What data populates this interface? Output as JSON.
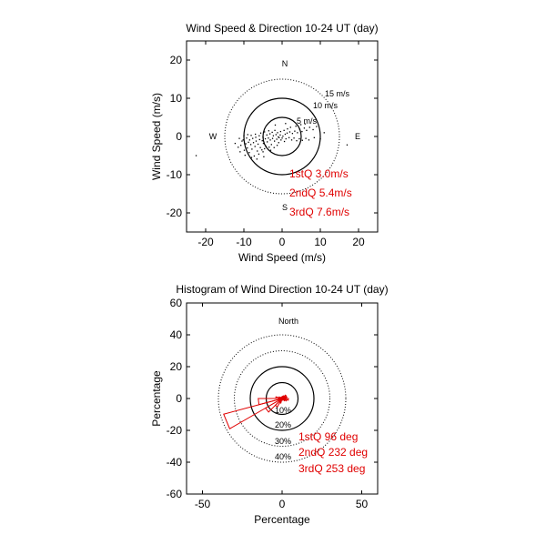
{
  "chart_data": [
    {
      "type": "scatter",
      "title": "Wind Speed & Direction 10-24 UT (day)",
      "xlabel": "Wind Speed (m/s)",
      "ylabel": "Wind Speed (m/s)",
      "xlim": [
        -25,
        25
      ],
      "ylim": [
        -25,
        25
      ],
      "xticks": [
        -20,
        -10,
        0,
        10,
        20
      ],
      "yticks": [
        -20,
        -10,
        0,
        10,
        20
      ],
      "xtick_labels": [
        "-20",
        "-10",
        "0",
        "10",
        "20"
      ],
      "ytick_labels": [
        "-20",
        "-10",
        "0",
        "10",
        "20"
      ],
      "grid": false,
      "compass": {
        "north": "N",
        "south": "S",
        "east": "E",
        "west": "W"
      },
      "rings": [
        {
          "radius": 5,
          "label": "5 m/s",
          "style": "solid"
        },
        {
          "radius": 10,
          "label": "10 m/s",
          "style": "solid"
        },
        {
          "radius": 15,
          "label": "15 m/s",
          "style": "dotted"
        }
      ],
      "annotations": [
        "1stQ 3.0m/s",
        "2ndQ 5.4m/s",
        "3rdQ 7.6m/s"
      ],
      "points": [
        [
          -8.2,
          -2.1
        ],
        [
          -7.5,
          -1.6
        ],
        [
          -9.1,
          -3.0
        ],
        [
          -6.8,
          -1.2
        ],
        [
          -5.9,
          -0.8
        ],
        [
          -10.2,
          -0.9
        ],
        [
          -8.8,
          -1.5
        ],
        [
          -7.1,
          -2.6
        ],
        [
          -6.3,
          -2.0
        ],
        [
          -5.2,
          -1.1
        ],
        [
          -4.4,
          -0.6
        ],
        [
          -3.6,
          -0.4
        ],
        [
          -9.5,
          -1.9
        ],
        [
          -10.8,
          -2.3
        ],
        [
          -7.9,
          -3.3
        ],
        [
          -6.5,
          -3.8
        ],
        [
          -8.6,
          -4.2
        ],
        [
          -9.9,
          -3.6
        ],
        [
          -5.7,
          -2.9
        ],
        [
          -4.9,
          -1.8
        ],
        [
          -3.9,
          -1.4
        ],
        [
          -3.1,
          -0.9
        ],
        [
          -2.5,
          -0.5
        ],
        [
          -2.0,
          -1.2
        ],
        [
          -1.4,
          -0.7
        ],
        [
          -0.8,
          -0.3
        ],
        [
          -6.1,
          -4.6
        ],
        [
          -7.3,
          -5.1
        ],
        [
          -8.0,
          -5.5
        ],
        [
          -5.3,
          -3.5
        ],
        [
          -4.2,
          -2.6
        ],
        [
          -10.5,
          -1.2
        ],
        [
          -9.3,
          -0.4
        ],
        [
          -8.1,
          0.3
        ],
        [
          -7.0,
          0.6
        ],
        [
          -6.0,
          0.2
        ],
        [
          -5.0,
          -0.2
        ],
        [
          -4.0,
          0.4
        ],
        [
          -3.2,
          0.7
        ],
        [
          -2.3,
          0.2
        ],
        [
          -1.6,
          0.5
        ],
        [
          -1.0,
          -0.1
        ],
        [
          -0.5,
          0.4
        ],
        [
          0.2,
          0.1
        ],
        [
          0.8,
          0.6
        ],
        [
          1.3,
          0.9
        ],
        [
          2.0,
          1.2
        ],
        [
          2.7,
          0.8
        ],
        [
          3.3,
          1.4
        ],
        [
          4.0,
          1.0
        ],
        [
          4.6,
          1.9
        ],
        [
          5.2,
          1.3
        ],
        [
          5.8,
          2.2
        ],
        [
          6.4,
          1.6
        ],
        [
          7.2,
          2.4
        ],
        [
          8.1,
          1.8
        ],
        [
          9.0,
          2.6
        ],
        [
          1.0,
          -0.6
        ],
        [
          1.8,
          -0.3
        ],
        [
          2.5,
          -0.9
        ],
        [
          3.1,
          -0.4
        ],
        [
          3.8,
          -1.1
        ],
        [
          4.5,
          -0.6
        ],
        [
          5.3,
          -1.0
        ],
        [
          6.2,
          -0.5
        ],
        [
          7.0,
          -0.9
        ],
        [
          8.4,
          -0.3
        ],
        [
          -11.5,
          -2.8
        ],
        [
          -12.3,
          -1.8
        ],
        [
          -11.0,
          -4.0
        ],
        [
          -9.7,
          -4.9
        ],
        [
          -6.9,
          -0.2
        ],
        [
          -5.6,
          0.9
        ],
        [
          -4.6,
          1.2
        ],
        [
          -3.5,
          1.5
        ],
        [
          -2.6,
          1.1
        ],
        [
          -1.9,
          1.6
        ],
        [
          -1.2,
          1.0
        ],
        [
          -0.4,
          1.3
        ],
        [
          0.5,
          1.6
        ],
        [
          1.4,
          2.0
        ],
        [
          2.2,
          2.4
        ],
        [
          0.0,
          -0.4
        ],
        [
          -0.3,
          -0.9
        ],
        [
          0.6,
          -1.3
        ],
        [
          -0.9,
          -1.6
        ],
        [
          -2.8,
          -2.1
        ],
        [
          -3.4,
          -2.8
        ],
        [
          -4.6,
          -3.2
        ],
        [
          -5.0,
          -4.0
        ],
        [
          -7.7,
          -0.5
        ],
        [
          -8.5,
          -0.9
        ],
        [
          -9.0,
          0.5
        ],
        [
          -10.0,
          0.2
        ],
        [
          -11.2,
          -0.5
        ],
        [
          -6.6,
          -5.9
        ],
        [
          -4.8,
          -5.3
        ],
        [
          -3.0,
          -3.6
        ],
        [
          -2.1,
          -2.9
        ],
        [
          -1.3,
          -2.3
        ],
        [
          3.6,
          2.7
        ],
        [
          4.9,
          3.1
        ],
        [
          6.0,
          3.3
        ],
        [
          -22.5,
          -5.0
        ],
        [
          17.0,
          -2.2
        ],
        [
          10.0,
          -0.6
        ],
        [
          11.0,
          1.0
        ],
        [
          -1.8,
          3.0
        ],
        [
          0.9,
          3.4
        ]
      ]
    },
    {
      "type": "rose",
      "title": "Histogram of Wind Direction 10-24 UT (day)",
      "xlabel": "Percentage",
      "ylabel": "Percentage",
      "xlim": [
        -60,
        60
      ],
      "ylim": [
        -60,
        60
      ],
      "xticks": [
        -50,
        0,
        50
      ],
      "yticks": [
        -60,
        -40,
        -20,
        0,
        20,
        40,
        60
      ],
      "xtick_labels": [
        "-50",
        "0",
        "50"
      ],
      "ytick_labels": [
        "-60",
        "-40",
        "-20",
        "0",
        "20",
        "40",
        "60"
      ],
      "grid": false,
      "north_label": "North",
      "rings": [
        {
          "radius": 10,
          "label": "10%",
          "style": "solid"
        },
        {
          "radius": 20,
          "label": "20%",
          "style": "solid"
        },
        {
          "radius": 30,
          "label": "30%",
          "style": "dotted"
        },
        {
          "radius": 40,
          "label": "40%",
          "style": "dotted"
        }
      ],
      "annotations": [
        "1stQ  96 deg",
        "2ndQ 232 deg",
        "3rdQ 253 deg"
      ],
      "bin_width_deg": 15,
      "bins": [
        {
          "dir_deg": 7.5,
          "pct": 1.0
        },
        {
          "dir_deg": 22.5,
          "pct": 1.5
        },
        {
          "dir_deg": 37.5,
          "pct": 2.0
        },
        {
          "dir_deg": 52.5,
          "pct": 3.0
        },
        {
          "dir_deg": 67.5,
          "pct": 3.0
        },
        {
          "dir_deg": 82.5,
          "pct": 3.0
        },
        {
          "dir_deg": 97.5,
          "pct": 4.0
        },
        {
          "dir_deg": 112.5,
          "pct": 3.0
        },
        {
          "dir_deg": 127.5,
          "pct": 2.0
        },
        {
          "dir_deg": 142.5,
          "pct": 1.0
        },
        {
          "dir_deg": 157.5,
          "pct": 1.0
        },
        {
          "dir_deg": 172.5,
          "pct": 1.0
        },
        {
          "dir_deg": 187.5,
          "pct": 1.0
        },
        {
          "dir_deg": 202.5,
          "pct": 3.0
        },
        {
          "dir_deg": 217.5,
          "pct": 6.0
        },
        {
          "dir_deg": 232.5,
          "pct": 12.0
        },
        {
          "dir_deg": 247.5,
          "pct": 38.0
        },
        {
          "dir_deg": 262.5,
          "pct": 15.0
        },
        {
          "dir_deg": 277.5,
          "pct": 4.0
        },
        {
          "dir_deg": 292.5,
          "pct": 2.0
        },
        {
          "dir_deg": 307.5,
          "pct": 1.0
        },
        {
          "dir_deg": 322.5,
          "pct": 1.0
        },
        {
          "dir_deg": 337.5,
          "pct": 1.0
        },
        {
          "dir_deg": 352.5,
          "pct": 1.0
        }
      ]
    }
  ]
}
